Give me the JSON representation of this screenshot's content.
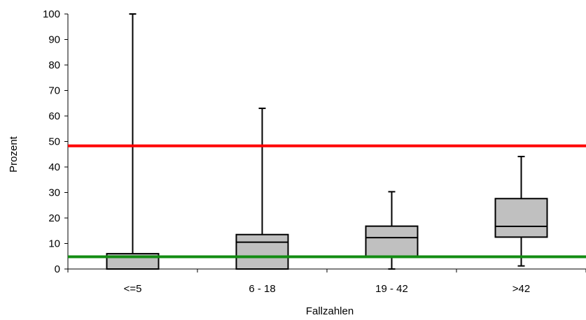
{
  "chart_data": {
    "type": "boxplot",
    "xlabel": "Fallzahlen",
    "ylabel": "Prozent",
    "ylim": [
      0,
      100
    ],
    "yticks": [
      0,
      10,
      20,
      30,
      40,
      50,
      60,
      70,
      80,
      90,
      100
    ],
    "grid": false,
    "categories": [
      "<=5",
      "6 - 18",
      "19 - 42",
      ">42"
    ],
    "boxes": [
      {
        "category": "<=5",
        "min": 0,
        "q1": 0,
        "median": 0,
        "q3": 6,
        "max": 100
      },
      {
        "category": "6 - 18",
        "min": 0,
        "q1": 0,
        "median": 10.5,
        "q3": 13.5,
        "max": 63
      },
      {
        "category": "19 - 42",
        "min": 0,
        "q1": 5,
        "median": 12.3,
        "q3": 16.8,
        "max": 30.3
      },
      {
        "category": ">42",
        "min": 1.2,
        "q1": 12.5,
        "median": 16.7,
        "q3": 27.6,
        "max": 44.1
      }
    ],
    "reference_lines": [
      {
        "value": 48.3,
        "color": "#ff0000"
      },
      {
        "value": 4.8,
        "color": "#138c13"
      }
    ],
    "colors": {
      "box_fill": "#c0c0c0",
      "stroke": "#000000"
    }
  }
}
